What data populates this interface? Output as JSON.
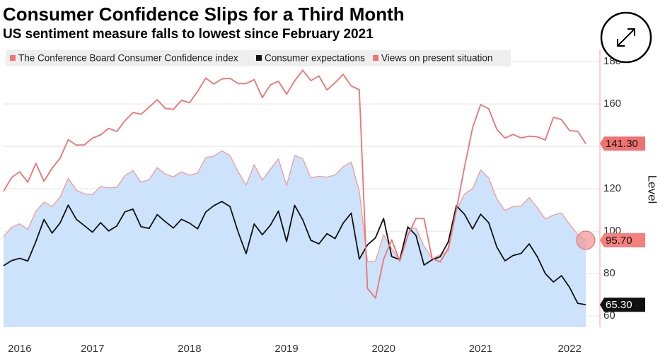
{
  "chart_data": {
    "type": "line",
    "title": "Consumer Confidence Slips for a Third Month",
    "subtitle": "US sentiment measure falls to lowest since February 2021",
    "y_axis_label": "Level",
    "categories": [
      null,
      null,
      "2016",
      null,
      null,
      null,
      null,
      null,
      null,
      null,
      null,
      "2017",
      null,
      null,
      null,
      null,
      null,
      null,
      null,
      null,
      null,
      null,
      null,
      "2018",
      null,
      null,
      null,
      null,
      null,
      null,
      null,
      null,
      null,
      null,
      null,
      "2019",
      null,
      null,
      null,
      null,
      null,
      null,
      null,
      null,
      null,
      null,
      null,
      "2020",
      null,
      null,
      null,
      null,
      null,
      null,
      null,
      null,
      null,
      null,
      null,
      "2021",
      null,
      null,
      null,
      null,
      null,
      null,
      null,
      null,
      null,
      null,
      "2022",
      null,
      null
    ],
    "ylim": [
      54.7,
      185.7
    ],
    "yticks": [
      60,
      80,
      100,
      120,
      140,
      160,
      180
    ],
    "grid": true,
    "legend_position": "top-left",
    "series": [
      {
        "name": "The Conference Board Consumer Confidence index",
        "color": "#f29a98",
        "fill": "#cce3fb",
        "values": [
          97.4,
          101.8,
          103.5,
          100.8,
          109.4,
          113.7,
          111.6,
          116.1,
          124.9,
          119.4,
          117.6,
          117.3,
          121.1,
          120.4,
          120.6,
          126.2,
          128.6,
          123.1,
          124.3,
          130.0,
          127.0,
          125.6,
          128.0,
          126.4,
          127.4,
          134.7,
          135.3,
          137.9,
          135.7,
          128.1,
          121.7,
          131.4,
          124.1,
          129.2,
          134.1,
          121.5,
          135.7,
          134.2,
          125.1,
          125.9,
          125.5,
          126.5,
          130.4,
          132.6,
          118.8,
          85.7,
          85.9,
          98.3,
          91.7,
          86.3,
          101.3,
          101.4,
          92.9,
          87.1,
          88.9,
          90.4,
          109.7,
          117.5,
          120.0,
          128.9,
          125.1,
          115.2,
          109.8,
          111.6,
          111.9,
          115.8,
          111.1,
          105.7,
          107.6,
          108.6,
          103.2,
          98.4,
          95.7
        ],
        "value_labels": [
          null,
          null,
          null,
          null,
          null,
          null,
          null,
          null,
          null,
          null,
          null,
          null,
          null,
          null,
          null,
          null,
          null,
          null,
          null,
          null,
          null,
          null,
          null,
          null,
          null,
          null,
          null,
          null,
          null,
          null,
          null,
          null,
          null,
          null,
          null,
          null,
          null,
          null,
          null,
          null,
          null,
          null,
          null,
          null,
          null,
          null,
          null,
          null,
          null,
          null,
          null,
          null,
          null,
          null,
          null,
          null,
          null,
          null,
          null,
          null,
          null,
          null,
          null,
          null,
          null,
          null,
          null,
          null,
          null,
          null,
          null,
          null,
          "95.70"
        ]
      },
      {
        "name": "Consumer expectations",
        "color": "#111111",
        "values": [
          83.7,
          86.1,
          87.2,
          85.9,
          95.1,
          105.5,
          99.1,
          103.9,
          112.3,
          105.6,
          102.6,
          99.5,
          104.0,
          100.1,
          102.4,
          109.1,
          110.4,
          102.1,
          101.3,
          107.8,
          104.5,
          101.5,
          105.6,
          103.8,
          101.1,
          109.0,
          112.0,
          114.0,
          111.6,
          99.7,
          89.4,
          103.4,
          98.3,
          102.8,
          109.5,
          95.1,
          112.2,
          105.4,
          95.7,
          94.0,
          98.8,
          96.5,
          103.8,
          108.5,
          86.8,
          93.5,
          96.9,
          106.0,
          88.0,
          86.6,
          102.0,
          98.0,
          84.0,
          86.5,
          88.0,
          95.0,
          112.0,
          108.0,
          101.0,
          108.0,
          104.0,
          92.5,
          86.0,
          88.5,
          89.5,
          94.0,
          88.0,
          80.0,
          76.0,
          79.0,
          73.5,
          66.0,
          65.3
        ],
        "value_labels": [
          null,
          null,
          null,
          null,
          null,
          null,
          null,
          null,
          null,
          null,
          null,
          null,
          null,
          null,
          null,
          null,
          null,
          null,
          null,
          null,
          null,
          null,
          null,
          null,
          null,
          null,
          null,
          null,
          null,
          null,
          null,
          null,
          null,
          null,
          null,
          null,
          null,
          null,
          null,
          null,
          null,
          null,
          null,
          null,
          null,
          null,
          null,
          null,
          null,
          null,
          null,
          null,
          null,
          null,
          null,
          null,
          null,
          null,
          null,
          null,
          null,
          null,
          null,
          null,
          null,
          null,
          null,
          null,
          null,
          null,
          null,
          null,
          "65.30"
        ]
      },
      {
        "name": "Views on present situation",
        "color": "#ee7371",
        "values": [
          118.8,
          125.3,
          128.0,
          123.1,
          132.0,
          123.5,
          129.7,
          134.4,
          143.1,
          140.6,
          140.7,
          143.9,
          145.4,
          148.5,
          147.0,
          152.0,
          156.0,
          155.1,
          158.5,
          162.0,
          157.9,
          157.5,
          161.7,
          160.6,
          165.9,
          172.2,
          169.4,
          171.8,
          172.1,
          169.6,
          169.6,
          171.5,
          163.0,
          169.0,
          170.7,
          164.6,
          170.9,
          175.9,
          171.0,
          173.2,
          166.6,
          170.0,
          174.0,
          168.5,
          166.7,
          73.0,
          68.4,
          86.7,
          95.9,
          85.8,
          98.0,
          106.0,
          105.9,
          87.1,
          85.5,
          92.0,
          110.1,
          130.0,
          148.7,
          159.7,
          157.7,
          148.0,
          143.9,
          145.6,
          144.0,
          144.8,
          144.5,
          143.0,
          153.7,
          152.6,
          147.4,
          147.1,
          141.3
        ],
        "value_labels": [
          null,
          null,
          null,
          null,
          null,
          null,
          null,
          null,
          null,
          null,
          null,
          null,
          null,
          null,
          null,
          null,
          null,
          null,
          null,
          null,
          null,
          null,
          null,
          null,
          null,
          null,
          null,
          null,
          null,
          null,
          null,
          null,
          null,
          null,
          null,
          null,
          null,
          null,
          null,
          null,
          null,
          null,
          null,
          null,
          null,
          null,
          null,
          null,
          null,
          null,
          null,
          null,
          null,
          null,
          null,
          null,
          null,
          null,
          null,
          null,
          null,
          null,
          null,
          null,
          null,
          null,
          null,
          null,
          null,
          null,
          null,
          null,
          "141.30"
        ]
      }
    ]
  }
}
